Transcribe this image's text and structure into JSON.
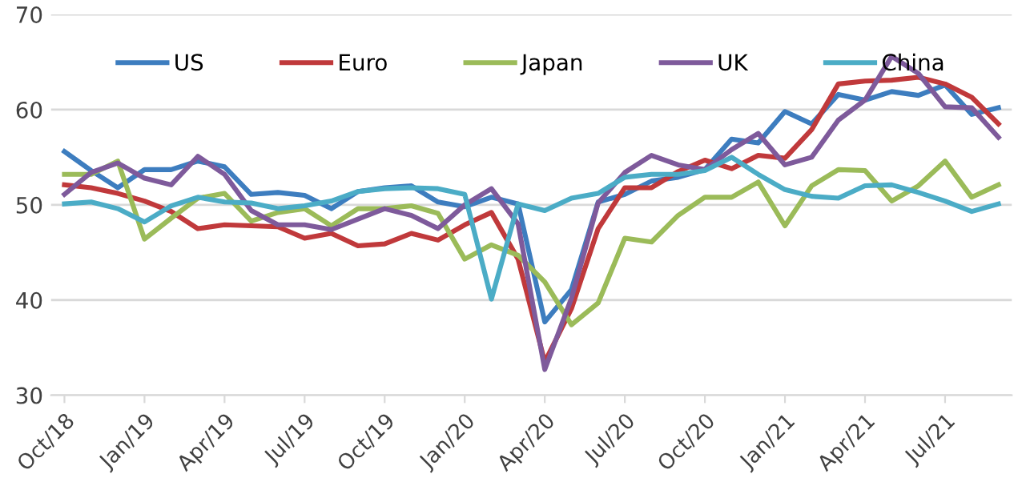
{
  "chart_data": {
    "type": "line",
    "categories": [
      "Oct/18",
      null,
      null,
      "Jan/19",
      null,
      null,
      "Apr/19",
      null,
      null,
      "Jul/19",
      null,
      null,
      "Oct/19",
      null,
      null,
      "Jan/20",
      null,
      null,
      "Apr/20",
      null,
      null,
      "Jul/20",
      null,
      null,
      "Oct/20",
      null,
      null,
      "Jan/21",
      null,
      null,
      "Apr/21",
      null,
      null,
      "Jul/21",
      null,
      null
    ],
    "series": [
      {
        "name": "US",
        "color": "#3d7dbf",
        "values": [
          55.6,
          53.6,
          51.8,
          53.7,
          53.7,
          54.6,
          54.0,
          51.1,
          51.3,
          51.0,
          49.6,
          51.4,
          51.8,
          52.0,
          50.3,
          49.8,
          50.8,
          50.1,
          37.7,
          41.1,
          50.3,
          51.1,
          52.5,
          52.9,
          53.7,
          56.9,
          56.5,
          59.8,
          58.5,
          61.6,
          61.0,
          61.9,
          61.5,
          62.6,
          59.5,
          60.2
        ]
      },
      {
        "name": "Euro",
        "color": "#c0393b",
        "values": [
          52.1,
          51.8,
          51.2,
          50.4,
          49.3,
          47.5,
          47.9,
          47.8,
          47.7,
          46.5,
          47.0,
          45.7,
          45.9,
          47.0,
          46.3,
          47.9,
          49.2,
          44.3,
          33.5,
          39.1,
          47.5,
          51.8,
          51.8,
          53.5,
          54.7,
          53.8,
          55.2,
          54.9,
          57.9,
          62.7,
          63.0,
          63.1,
          63.4,
          62.7,
          61.3,
          58.5
        ]
      },
      {
        "name": "Japan",
        "color": "#9bbb59",
        "values": [
          53.2,
          53.2,
          54.6,
          46.4,
          48.6,
          50.7,
          51.2,
          48.3,
          49.2,
          49.6,
          47.8,
          49.6,
          49.6,
          49.9,
          49.1,
          44.3,
          45.8,
          44.7,
          41.9,
          37.4,
          39.7,
          46.5,
          46.1,
          48.9,
          50.8,
          50.8,
          52.4,
          47.8,
          52.0,
          53.7,
          53.6,
          50.4,
          52.0,
          54.6,
          50.8,
          52.1
        ]
      },
      {
        "name": "UK",
        "color": "#7e5a9b",
        "values": [
          51.1,
          53.4,
          54.4,
          52.8,
          52.1,
          55.1,
          53.2,
          49.4,
          47.9,
          47.9,
          47.4,
          48.5,
          49.6,
          48.9,
          47.5,
          50.0,
          51.7,
          48.0,
          32.7,
          40.2,
          50.2,
          53.4,
          55.2,
          54.2,
          53.7,
          55.8,
          57.5,
          54.2,
          55.0,
          58.9,
          61.0,
          65.6,
          63.8,
          60.3,
          60.2,
          57.1
        ]
      },
      {
        "name": "China",
        "color": "#4bacc6",
        "values": [
          50.1,
          50.3,
          49.6,
          48.2,
          49.9,
          50.8,
          50.3,
          50.2,
          49.6,
          49.9,
          50.4,
          51.4,
          51.7,
          51.8,
          51.7,
          51.1,
          40.1,
          50.1,
          49.4,
          50.7,
          51.2,
          52.9,
          53.2,
          53.2,
          53.6,
          55.0,
          53.2,
          51.6,
          50.9,
          50.7,
          52.0,
          52.1,
          51.3,
          50.4,
          49.3,
          50.1
        ]
      }
    ],
    "ylim": [
      30,
      70
    ],
    "yticks": [
      30,
      40,
      50,
      60,
      70
    ],
    "grid": "y",
    "legend": "top",
    "line_style": "solid",
    "marker": "none"
  }
}
